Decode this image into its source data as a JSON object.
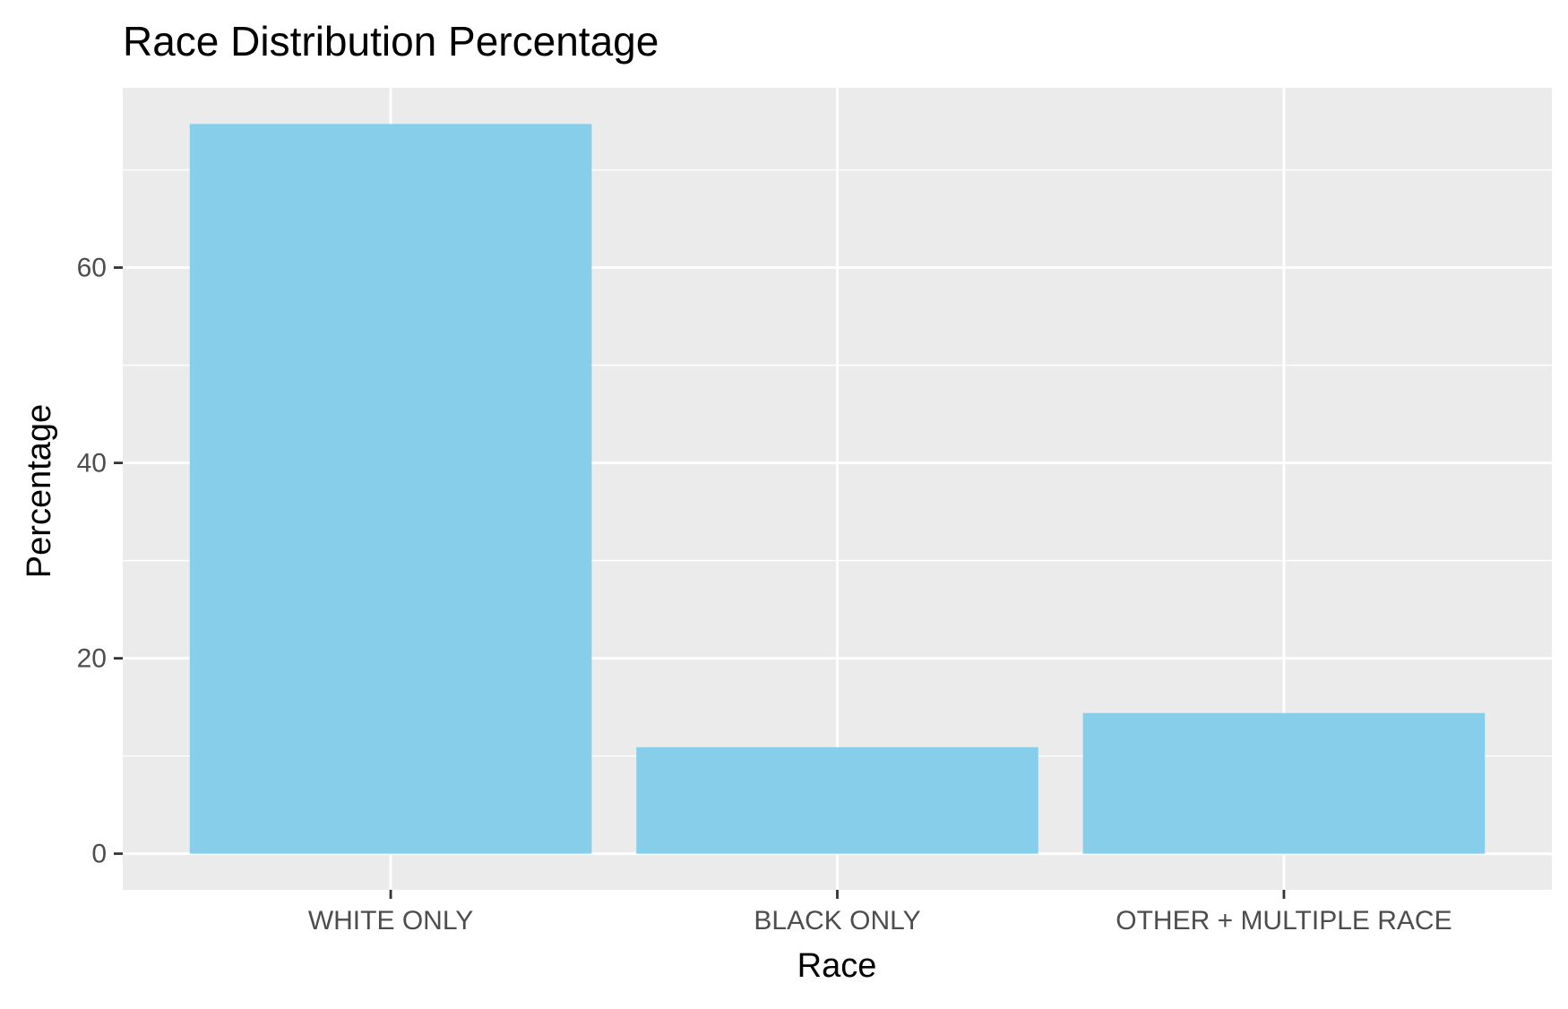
{
  "chart_data": {
    "type": "bar",
    "title": "Race Distribution Percentage",
    "xlabel": "Race",
    "ylabel": "Percentage",
    "categories": [
      "WHITE ONLY",
      "BLACK ONLY",
      "OTHER + MULTIPLE RACE"
    ],
    "values": [
      74.7,
      10.9,
      14.4
    ],
    "ylim": [
      -3.7,
      78.4
    ],
    "yticks": [
      0,
      20,
      40,
      60
    ],
    "ytick_labels": [
      "0",
      "20",
      "40",
      "60"
    ],
    "grid": true,
    "bar_color": "#87CEEB",
    "panel_background": "#EBEBEB",
    "gridline_color": "#FFFFFF"
  }
}
